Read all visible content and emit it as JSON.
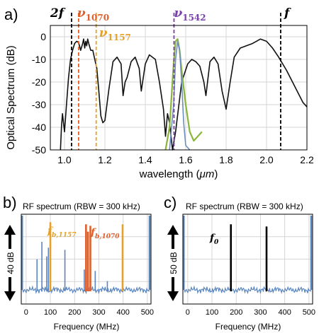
{
  "chart_data": [
    {
      "panel_label": "a)",
      "type": "line",
      "xlabel_text": "wavelength (",
      "xlabel_unit": "μm",
      "xlabel_close": ")",
      "ylabel": "Optical Spectrum (dB)",
      "xlim": [
        0.93,
        2.2
      ],
      "ylim": [
        -50,
        5
      ],
      "x_ticks": [
        "1.0",
        "1.2",
        "1.4",
        "1.6",
        "1.8",
        "2.0",
        "2.2"
      ],
      "y_ticks": [
        "0",
        "-10",
        "-20",
        "-30",
        "-40",
        "-50"
      ],
      "grid": true,
      "colors": {
        "broad": "#111111",
        "filtered_green": "#8ab43a",
        "filtered_blue": "#6c8fbf",
        "nu1070": "#e0602d",
        "nu1157": "#e5a12a",
        "nu1542": "#7a3fb0",
        "marker": "#000000"
      },
      "vlines": [
        {
          "label": "2f",
          "x": 1.035,
          "color": "#000000"
        },
        {
          "label": "ν",
          "subscript": "1070",
          "x": 1.07,
          "color": "#e0602d"
        },
        {
          "label": "ν",
          "subscript": "1157",
          "x": 1.157,
          "color": "#e5a12a"
        },
        {
          "label": "ν",
          "subscript": "1542",
          "x": 1.542,
          "color": "#7a3fb0"
        },
        {
          "label": "f",
          "x": 2.07,
          "color": "#000000"
        }
      ],
      "series": [
        {
          "key": "broad",
          "x": [
            0.98,
            0.985,
            0.99,
            1.0,
            1.01,
            1.02,
            1.03,
            1.04,
            1.05,
            1.06,
            1.07,
            1.08,
            1.09,
            1.095,
            1.1,
            1.105,
            1.11,
            1.115,
            1.12,
            1.13,
            1.14,
            1.15,
            1.16,
            1.17,
            1.18,
            1.19,
            1.2,
            1.22,
            1.24,
            1.26,
            1.28,
            1.29,
            1.3,
            1.31,
            1.33,
            1.35,
            1.37,
            1.38,
            1.4,
            1.42,
            1.45,
            1.47,
            1.49,
            1.5,
            1.51,
            1.52,
            1.535,
            1.55,
            1.58,
            1.61,
            1.63,
            1.65,
            1.67,
            1.69,
            1.7,
            1.72,
            1.74,
            1.76,
            1.78,
            1.8,
            1.82,
            1.84,
            1.87,
            1.9,
            1.93,
            1.95,
            1.97,
            2.0,
            2.03,
            2.06,
            2.1,
            2.14,
            2.18,
            2.2
          ],
          "y": [
            -50,
            -40,
            -34,
            -42,
            -30,
            -18,
            -10,
            -6,
            -3,
            -2,
            -2.5,
            -6,
            -3,
            -1,
            -5,
            -2,
            -4,
            -1,
            -3,
            -6,
            -6,
            -10,
            -14,
            -24,
            -35,
            -38,
            -37,
            -23,
            -11,
            -9,
            -12,
            -26,
            -20,
            -18,
            -11,
            -9,
            -14,
            -24,
            -12,
            -8,
            -10,
            -20,
            -32,
            -44,
            -34,
            -38,
            -50,
            -42,
            -20,
            -12,
            -10,
            -11,
            -13,
            -20,
            -26,
            -11,
            -9,
            -12,
            -24,
            -32,
            -20,
            -9,
            -5,
            -4,
            -3,
            -2,
            -1,
            -2,
            -5,
            -9,
            -15,
            -22,
            -29,
            -31
          ]
        },
        {
          "key": "filtered_green",
          "x": [
            1.5,
            1.52,
            1.54,
            1.55,
            1.56,
            1.57,
            1.58,
            1.6,
            1.62,
            1.64,
            1.66,
            1.68
          ],
          "y": [
            -50,
            -40,
            -12,
            -2,
            -1,
            -6,
            -15,
            -30,
            -42,
            -46,
            -44,
            -42
          ]
        },
        {
          "key": "filtered_blue",
          "x": [
            1.52,
            1.54,
            1.55,
            1.56,
            1.57,
            1.58,
            1.59,
            1.6,
            1.62
          ],
          "y": [
            -50,
            -30,
            -10,
            -2,
            -6,
            -20,
            -38,
            -48,
            -50
          ]
        }
      ]
    },
    {
      "panel_label": "b)",
      "type": "line",
      "title": "RF spectrum (RBW = 300 kHz)",
      "xlabel": "Frequency (MHz)",
      "xlim": [
        -20,
        515
      ],
      "x_ticks": [
        "0",
        "100",
        "200",
        "300",
        "400",
        "500"
      ],
      "scale_label": "40 dB",
      "grid": true,
      "colors": {
        "noise": "#5a86c0",
        "fb1157": "#e5a12a",
        "fb1070": "#e0602d"
      },
      "annotations": [
        {
          "label": "f",
          "subscript": "b,1157",
          "color": "#e5a12a"
        },
        {
          "label": "f",
          "subscript": "b,1070",
          "color": "#e0602d"
        }
      ],
      "peaks": [
        {
          "f": 45,
          "h": 0.42,
          "group": "noise"
        },
        {
          "f": 65,
          "h": 0.66,
          "group": "noise"
        },
        {
          "f": 85,
          "h": 0.46,
          "group": "noise"
        },
        {
          "f": 92,
          "h": 0.58,
          "group": "noise"
        },
        {
          "f": 160,
          "h": 0.55,
          "group": "noise"
        },
        {
          "f": 240,
          "h": 0.28,
          "group": "noise"
        },
        {
          "f": 285,
          "h": 0.26,
          "group": "noise"
        },
        {
          "f": 335,
          "h": 0.12,
          "group": "noise"
        },
        {
          "f": 100,
          "h": 0.93,
          "group": "fb1157"
        },
        {
          "f": 398,
          "h": 0.9,
          "group": "fb1157"
        },
        {
          "f": 247,
          "h": 0.9,
          "group": "fb1070"
        },
        {
          "f": 255,
          "h": 0.8,
          "group": "fb1070"
        },
        {
          "f": 265,
          "h": 0.88,
          "group": "fb1070"
        }
      ]
    },
    {
      "panel_label": "c)",
      "type": "line",
      "title": "RF spectrum (RBW = 300 kHz)",
      "xlabel": "Frequency (MHz)",
      "xlim": [
        -20,
        515
      ],
      "x_ticks": [
        "0",
        "100",
        "200",
        "300",
        "400",
        "500"
      ],
      "scale_label": "50 dB",
      "grid": true,
      "colors": {
        "noise": "#5a86c0",
        "f0": "#000000"
      },
      "annotations": [
        {
          "label": "f",
          "subscript": "0",
          "color": "#000000"
        }
      ],
      "peaks": [
        {
          "f": 178,
          "h": 0.9,
          "group": "f0"
        },
        {
          "f": 325,
          "h": 0.87,
          "group": "f0"
        }
      ]
    }
  ]
}
